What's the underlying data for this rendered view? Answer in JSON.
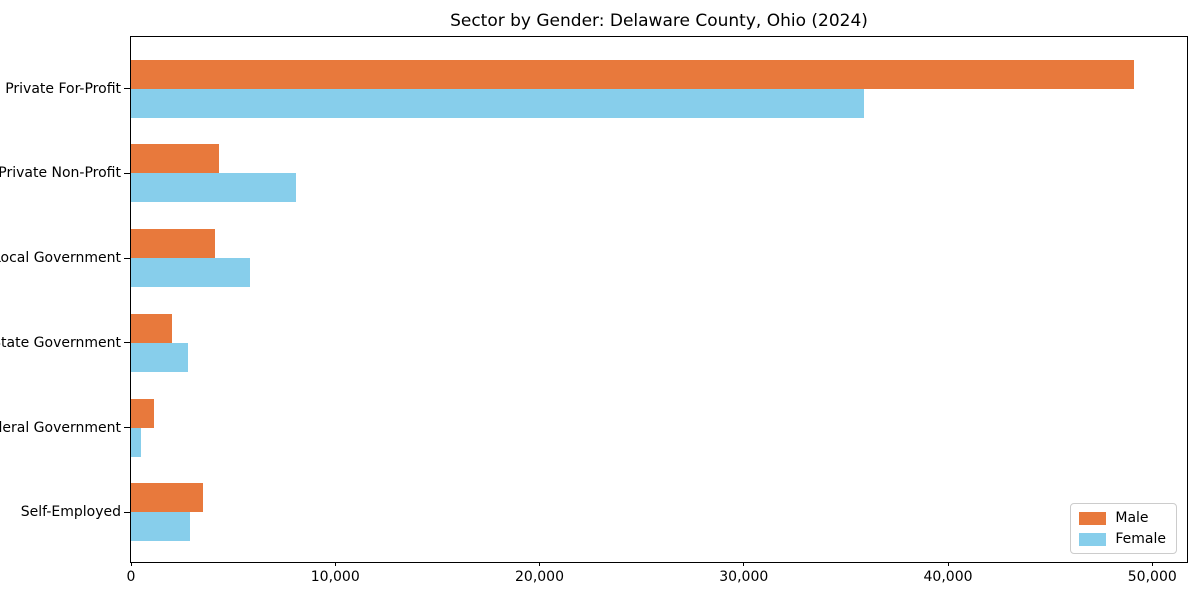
{
  "title": "Sector by Gender: Delaware County, Ohio (2024)",
  "colors": {
    "male": "#e8793c",
    "female": "#87ceeb",
    "spine": "#000000",
    "legend_border": "#cccccc",
    "background": "#ffffff"
  },
  "legend": {
    "position": "lower right",
    "entries": [
      "Male",
      "Female"
    ]
  },
  "chart_data": {
    "type": "bar",
    "orientation": "horizontal",
    "title": "Sector by Gender: Delaware County, Ohio (2024)",
    "categories": [
      "Private For-Profit",
      "Private Non-Profit",
      "Local Government",
      "State Government",
      "Federal Government",
      "Self-Employed"
    ],
    "series": [
      {
        "name": "Male",
        "color": "#e8793c",
        "values": [
          49100,
          4300,
          4100,
          2000,
          1100,
          3500
        ]
      },
      {
        "name": "Female",
        "color": "#87ceeb",
        "values": [
          35900,
          8100,
          5800,
          2800,
          500,
          2900
        ]
      }
    ],
    "xlabel": "",
    "ylabel": "",
    "xlim": [
      0,
      51700
    ],
    "xticks": [
      0,
      10000,
      20000,
      30000,
      40000,
      50000
    ],
    "xtick_labels": [
      "0",
      "10,000",
      "20,000",
      "30,000",
      "40,000",
      "50,000"
    ],
    "grid": false,
    "legend_position": "lower right"
  }
}
